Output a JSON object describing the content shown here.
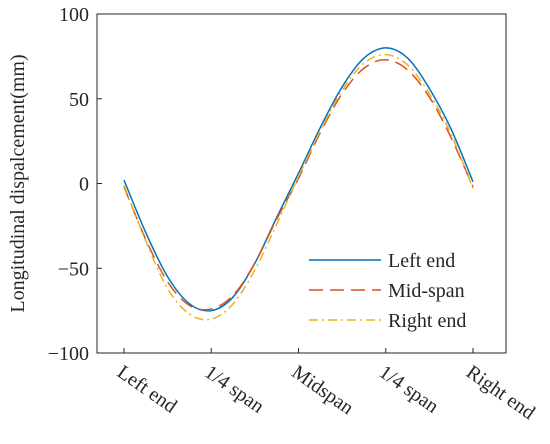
{
  "chart_data": {
    "type": "line",
    "title": "",
    "xlabel": "",
    "ylabel": "Longitudinal dispalcement(mm)",
    "categories": [
      "Left end",
      "1/4 span",
      "Midspan",
      "1/4 span",
      "Right end"
    ],
    "xlim": [
      0,
      4
    ],
    "ylim": [
      -100,
      100
    ],
    "yticks": [
      -100,
      -50,
      0,
      50,
      100
    ],
    "grid": false,
    "legend_position": "bottom-right",
    "x": [
      0,
      0.25,
      0.5,
      0.75,
      1,
      1.25,
      1.5,
      1.75,
      2,
      2.25,
      2.5,
      2.75,
      3,
      3.25,
      3.5,
      3.75,
      4
    ],
    "series": [
      {
        "name": "Left end",
        "color": "#0072BD",
        "dash": "solid",
        "values": [
          2,
          -29,
          -55,
          -71,
          -75,
          -67,
          -47,
          -20,
          6,
          33,
          57,
          74,
          80,
          74,
          56,
          32,
          1
        ]
      },
      {
        "name": "Mid-span",
        "color": "#D95319",
        "dash": "dashed",
        "values": [
          -2,
          -33,
          -58,
          -72,
          -74,
          -66,
          -47,
          -21,
          3,
          30,
          53,
          68,
          73,
          67,
          51,
          27,
          -2
        ]
      },
      {
        "name": "Right end",
        "color": "#EDB120",
        "dash": "dashdot",
        "values": [
          -1,
          -34,
          -62,
          -77,
          -80,
          -71,
          -51,
          -24,
          4,
          31,
          55,
          71,
          76,
          70,
          53,
          29,
          -3
        ]
      }
    ]
  }
}
